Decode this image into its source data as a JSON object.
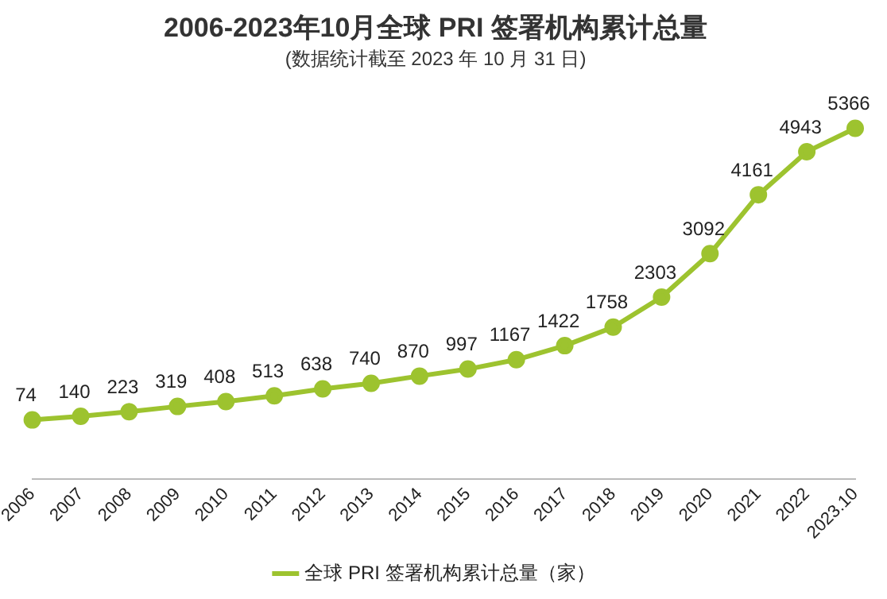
{
  "chart_data": {
    "type": "line",
    "title": "2006-2023年10月全球 PRI 签署机构累计总量",
    "subtitle": "(数据统计截至 2023 年 10 月 31 日)",
    "categories": [
      "2006",
      "2007",
      "2008",
      "2009",
      "2010",
      "2011",
      "2012",
      "2013",
      "2014",
      "2015",
      "2016",
      "2017",
      "2018",
      "2019",
      "2020",
      "2021",
      "2022",
      "2023.10"
    ],
    "series": [
      {
        "name": "全球 PRI 签署机构累计总量（家）",
        "color": "#9dc32f",
        "values": [
          74,
          140,
          223,
          319,
          408,
          513,
          638,
          740,
          870,
          997,
          1167,
          1422,
          1758,
          2303,
          3092,
          4161,
          4943,
          5366
        ]
      }
    ],
    "data_labels": true,
    "marker": "circle",
    "line_style": "solid",
    "legend": "bottom",
    "grid": false
  }
}
